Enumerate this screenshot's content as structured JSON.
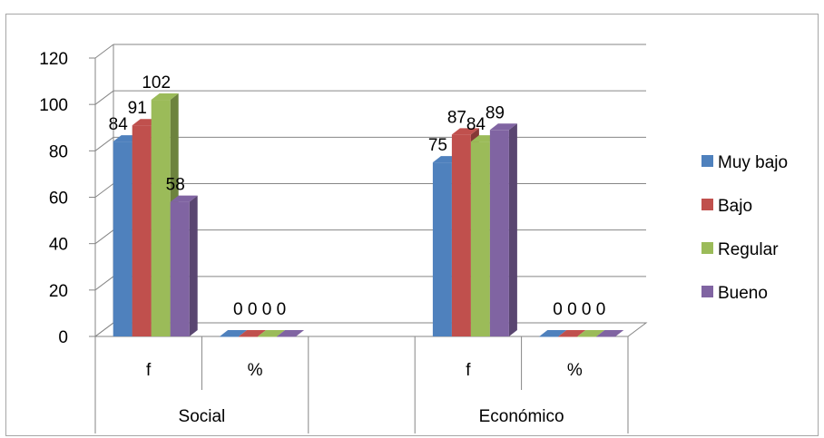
{
  "chart_data": {
    "type": "bar",
    "style": "3d-clustered-column",
    "categories": [
      {
        "group": "Social",
        "sub": "f"
      },
      {
        "group": "Social",
        "sub": "%"
      },
      {
        "group": "",
        "sub": ""
      },
      {
        "group": "Económico",
        "sub": "f"
      },
      {
        "group": "Económico",
        "sub": "%"
      }
    ],
    "groups": [
      {
        "label": "Social",
        "span": [
          0,
          1
        ]
      },
      {
        "label": "Económico",
        "span": [
          3,
          4
        ]
      }
    ],
    "series": [
      {
        "name": "Muy bajo",
        "color": "#4f81bd",
        "values": [
          84,
          0,
          null,
          75,
          0
        ]
      },
      {
        "name": "Bajo",
        "color": "#c0504d",
        "values": [
          91,
          0,
          null,
          87,
          0
        ]
      },
      {
        "name": "Regular",
        "color": "#9bbb59",
        "values": [
          102,
          0,
          null,
          84,
          0
        ]
      },
      {
        "name": "Bueno",
        "color": "#8064a2",
        "values": [
          58,
          0,
          null,
          89,
          0
        ]
      }
    ],
    "ylim": [
      0,
      120
    ],
    "yticks": [
      0,
      20,
      40,
      60,
      80,
      100,
      120
    ],
    "grid": true,
    "legend": "right",
    "data_labels": true
  }
}
